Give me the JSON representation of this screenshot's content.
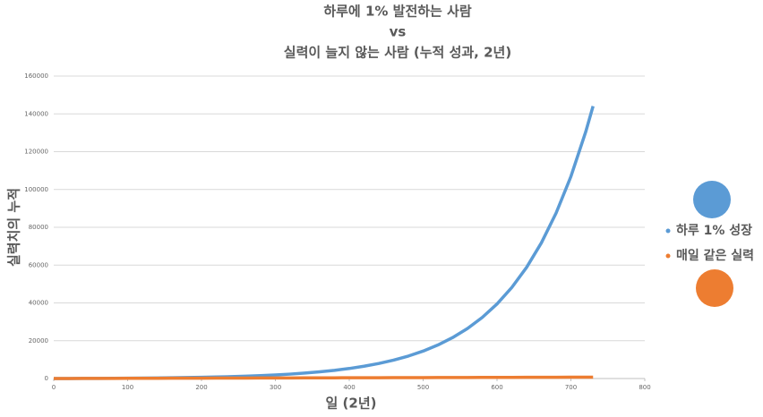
{
  "chart_data": {
    "type": "line",
    "title": [
      "하루에 1% 발전하는 사람",
      "vs",
      "실력이 늘지 않는 사람  (누적 성과, 2년)"
    ],
    "x_label": "일 (2년)",
    "y_label": "실력치의 누적",
    "x": [
      0,
      20,
      40,
      60,
      80,
      100,
      120,
      140,
      160,
      180,
      200,
      220,
      240,
      260,
      280,
      300,
      320,
      340,
      360,
      380,
      400,
      420,
      440,
      460,
      480,
      500,
      520,
      540,
      560,
      580,
      600,
      620,
      640,
      660,
      680,
      700,
      720,
      730
    ],
    "series": [
      {
        "name": "하루 1% 성장",
        "color": "#5b9bd5",
        "values": [
          0,
          22,
          49,
          83,
          123,
          172,
          232,
          306,
          395,
          505,
          638,
          801,
          999,
          1241,
          1537,
          1898,
          2338,
          2875,
          3530,
          4330,
          5305,
          6496,
          7948,
          9720,
          11883,
          14521,
          17741,
          21670,
          26463,
          32312,
          39449,
          48157,
          58783,
          71750,
          87570,
          106874,
          130430,
          144087
        ]
      },
      {
        "name": "매일 같은 실력",
        "color": "#ed7d31",
        "values": [
          0,
          20,
          40,
          60,
          80,
          100,
          120,
          140,
          160,
          180,
          200,
          220,
          240,
          260,
          280,
          300,
          320,
          340,
          360,
          380,
          400,
          420,
          440,
          460,
          480,
          500,
          520,
          540,
          560,
          580,
          600,
          620,
          640,
          660,
          680,
          700,
          720,
          730
        ]
      }
    ],
    "xlim": [
      0,
      800
    ],
    "xticks": [
      0,
      100,
      200,
      300,
      400,
      500,
      600,
      700,
      800
    ],
    "ylim": [
      0,
      160000
    ],
    "yticks": [
      0,
      20000,
      40000,
      60000,
      80000,
      100000,
      120000,
      140000,
      160000
    ],
    "grid": true,
    "legend": "right"
  }
}
